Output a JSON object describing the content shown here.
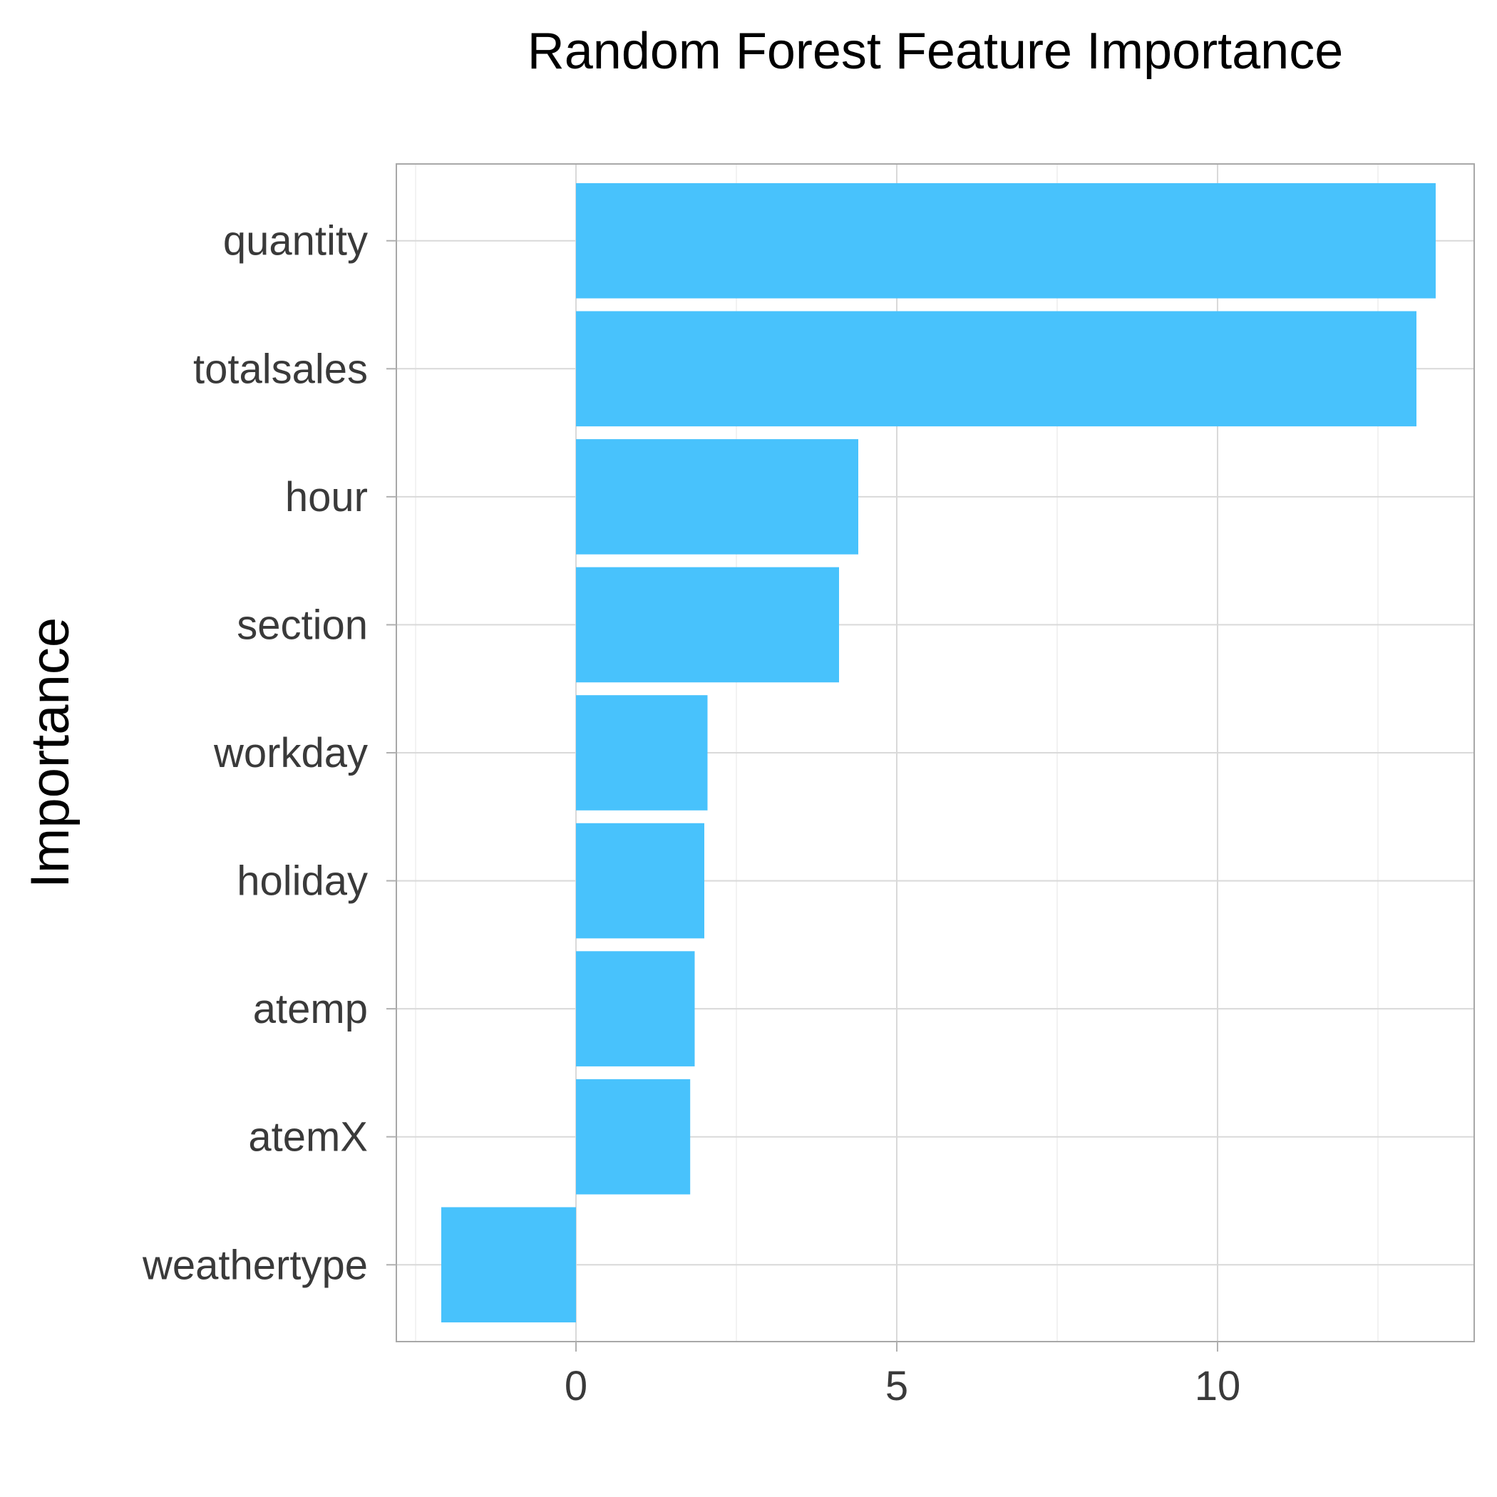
{
  "chart_data": {
    "type": "bar",
    "orientation": "horizontal",
    "title": "Random Forest Feature Importance",
    "xlabel": "",
    "ylabel": "Importance",
    "categories": [
      "quantity",
      "totalsales",
      "hour",
      "section",
      "workday",
      "holiday",
      "atemp",
      "atemX",
      "weathertype"
    ],
    "values": [
      13.4,
      13.1,
      4.4,
      4.1,
      2.05,
      2.0,
      1.85,
      1.78,
      -2.1
    ],
    "xlim": [
      -2.8,
      14.0
    ],
    "xticks": [
      0,
      5,
      10
    ],
    "xtick_labels": [
      "0",
      "5",
      "10"
    ],
    "grid": true,
    "bar_color": "#48c2fc"
  }
}
